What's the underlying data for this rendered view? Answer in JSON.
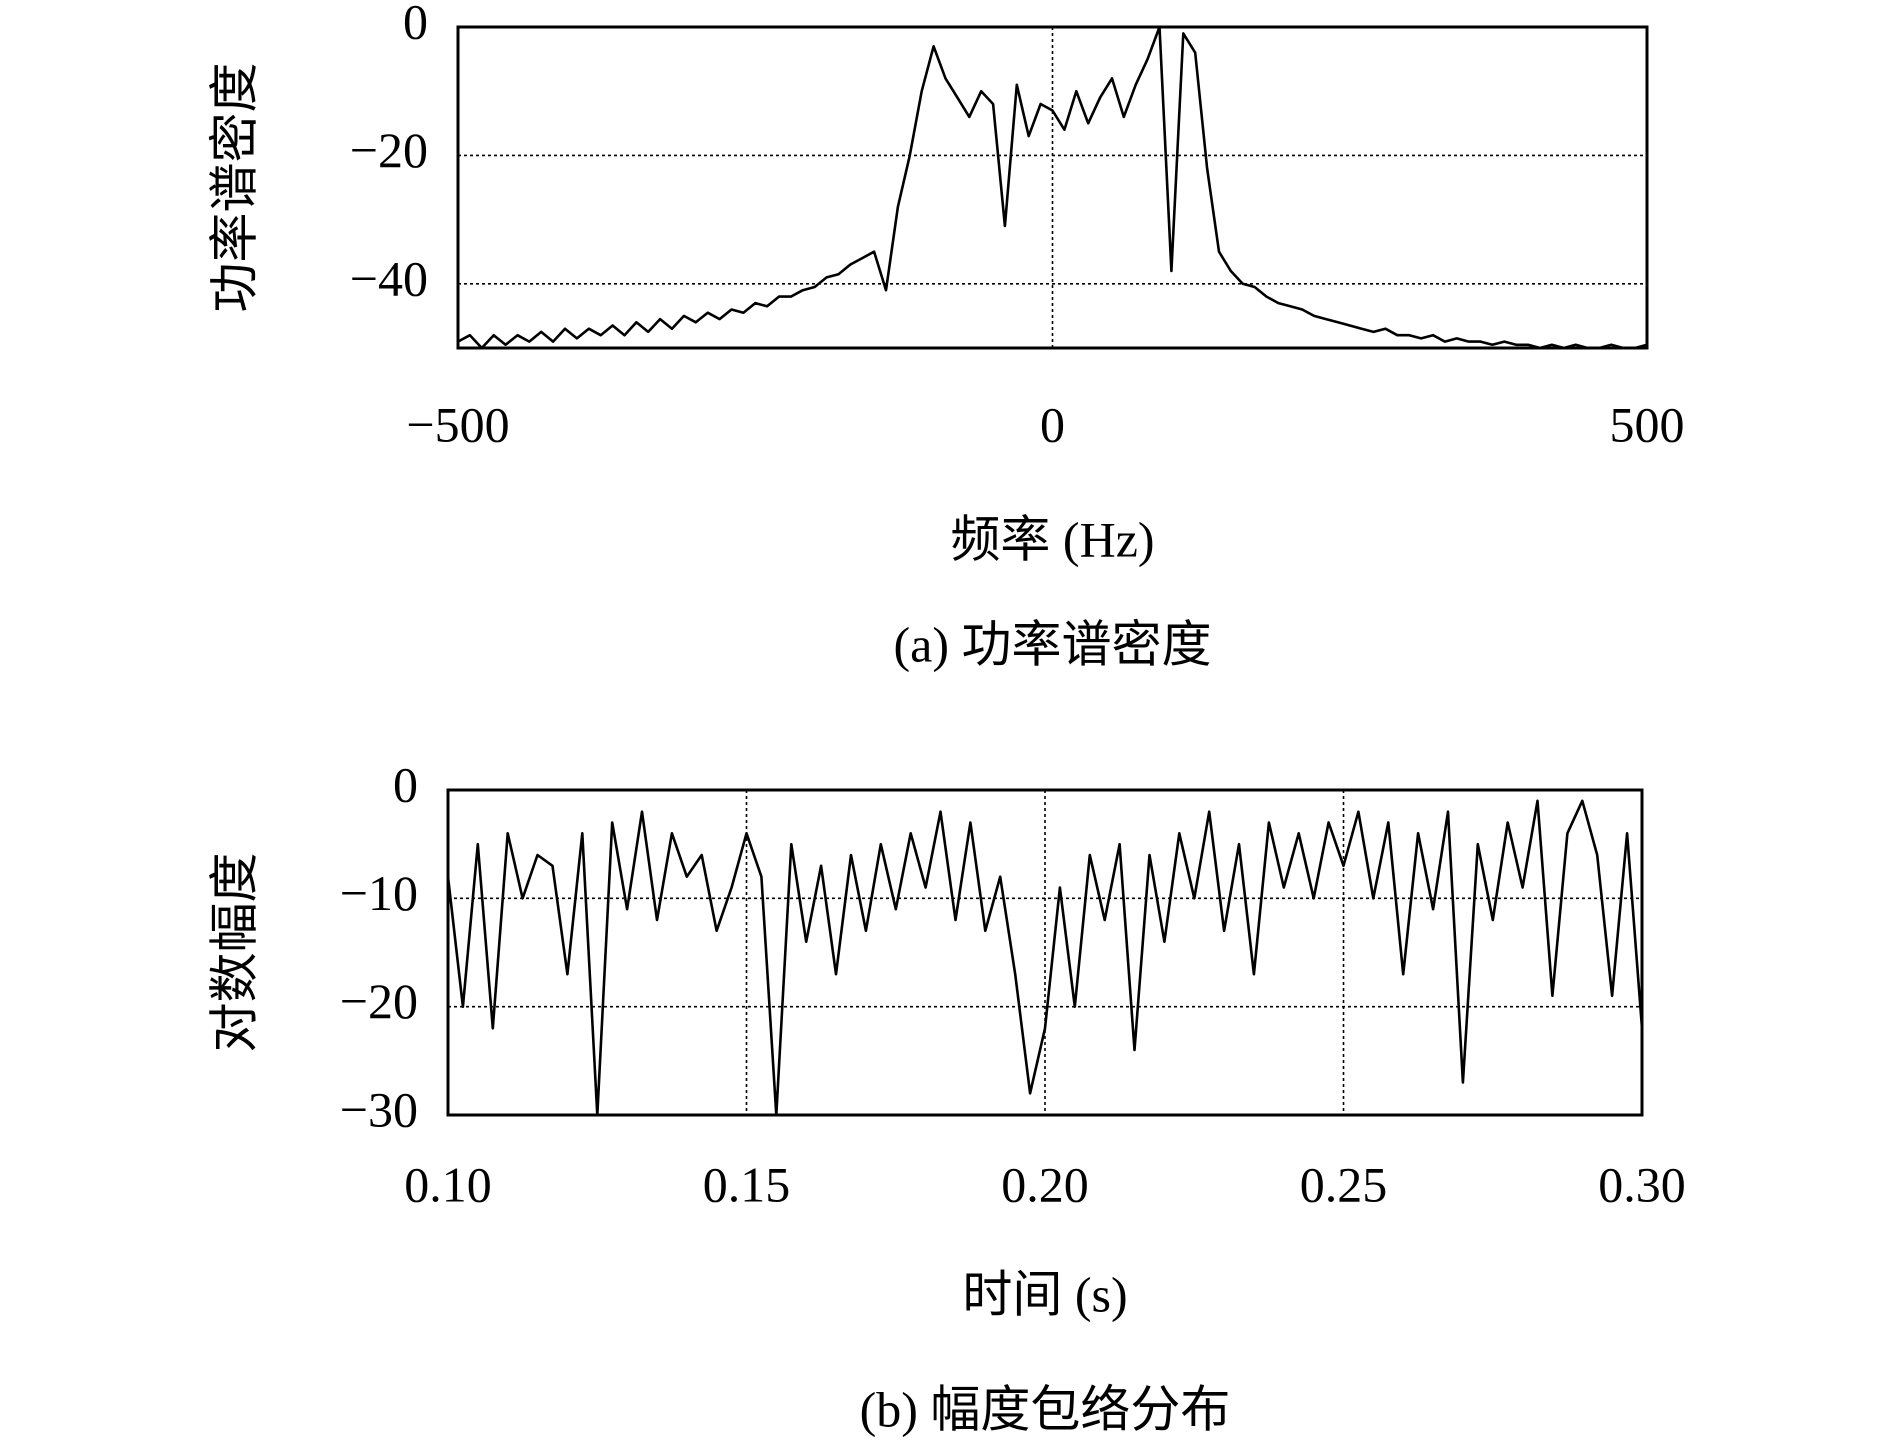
{
  "chart_data": [
    {
      "type": "line",
      "y_label": "功率谱密度",
      "x_label": "频率 (Hz)",
      "caption": "(a) 功率谱密度",
      "color": "#000000",
      "grid": true,
      "xlim": [
        -500,
        500
      ],
      "ylim": [
        -50,
        0
      ],
      "xticks": [
        {
          "value": -500,
          "label": "−500"
        },
        0,
        500
      ],
      "yticks": [
        0,
        {
          "value": -20,
          "label": "−20"
        },
        {
          "value": -40,
          "label": "−40"
        }
      ],
      "x": [
        -500,
        -490,
        -480,
        -470,
        -460,
        -450,
        -440,
        -430,
        -420,
        -410,
        -400,
        -390,
        -380,
        -370,
        -360,
        -350,
        -340,
        -330,
        -320,
        -310,
        -300,
        -290,
        -280,
        -270,
        -260,
        -250,
        -240,
        -230,
        -220,
        -210,
        -200,
        -190,
        -180,
        -170,
        -160,
        -150,
        -140,
        -130,
        -120,
        -110,
        -100,
        -90,
        -80,
        -70,
        -60,
        -50,
        -40,
        -30,
        -20,
        -10,
        0,
        10,
        20,
        30,
        40,
        50,
        60,
        70,
        80,
        90,
        100,
        110,
        120,
        130,
        140,
        150,
        160,
        170,
        180,
        190,
        200,
        210,
        220,
        230,
        240,
        250,
        260,
        270,
        280,
        290,
        300,
        310,
        320,
        330,
        340,
        350,
        360,
        370,
        380,
        390,
        400,
        410,
        420,
        430,
        440,
        450,
        460,
        470,
        480,
        490,
        500
      ],
      "values": [
        -49,
        -48,
        -50,
        -48,
        -49.5,
        -48,
        -49,
        -47.5,
        -49,
        -47,
        -48.5,
        -47,
        -48,
        -46.5,
        -48,
        -46,
        -47.5,
        -45.5,
        -47,
        -45,
        -46,
        -44.5,
        -45.5,
        -44,
        -44.5,
        -43,
        -43.5,
        -42,
        -42,
        -41,
        -40.5,
        -39,
        -38.5,
        -37,
        -36,
        -35,
        -41,
        -28,
        -20,
        -10,
        -3,
        -8,
        -11,
        -14,
        -10,
        -12,
        -31,
        -9,
        -17,
        -12,
        -13,
        -16,
        -10,
        -15,
        -11,
        -8,
        -14,
        -9,
        -5,
        0,
        -38,
        -1,
        -4,
        -22,
        -35,
        -38,
        -40,
        -40.5,
        -42,
        -43,
        -43.5,
        -44,
        -45,
        -45.5,
        -46,
        -46.5,
        -47,
        -47.5,
        -47,
        -48,
        -48,
        -48.5,
        -48,
        -49,
        -48.5,
        -49,
        -49,
        -49.5,
        -49,
        -49.5,
        -49.5,
        -50,
        -49.5,
        -50,
        -49.5,
        -50,
        -50,
        -49.5,
        -50,
        -50,
        -49.5
      ]
    },
    {
      "type": "line",
      "y_label": "对数幅度",
      "x_label": "时间 (s)",
      "caption": "(b) 幅度包络分布",
      "color": "#000000",
      "grid": true,
      "xlim": [
        0.1,
        0.3
      ],
      "ylim": [
        -30,
        0
      ],
      "xticks": [
        {
          "value": 0.1,
          "label": "0.10"
        },
        0.15,
        {
          "value": 0.2,
          "label": "0.20"
        },
        0.25,
        {
          "value": 0.3,
          "label": "0.30"
        }
      ],
      "yticks": [
        0,
        {
          "value": -10,
          "label": "−10"
        },
        {
          "value": -20,
          "label": "−20"
        },
        {
          "value": -30,
          "label": "−30"
        }
      ],
      "x": [
        0.1,
        0.1025,
        0.105,
        0.1075,
        0.11,
        0.1125,
        0.115,
        0.1175,
        0.12,
        0.1225,
        0.125,
        0.1275,
        0.13,
        0.1325,
        0.135,
        0.1375,
        0.14,
        0.1425,
        0.145,
        0.1475,
        0.15,
        0.1525,
        0.155,
        0.1575,
        0.16,
        0.1625,
        0.165,
        0.1675,
        0.17,
        0.1725,
        0.175,
        0.1775,
        0.18,
        0.1825,
        0.185,
        0.1875,
        0.19,
        0.1925,
        0.195,
        0.1975,
        0.2,
        0.2025,
        0.205,
        0.2075,
        0.21,
        0.2125,
        0.215,
        0.2175,
        0.22,
        0.2225,
        0.225,
        0.2275,
        0.23,
        0.2325,
        0.235,
        0.2375,
        0.24,
        0.2425,
        0.245,
        0.2475,
        0.25,
        0.2525,
        0.255,
        0.2575,
        0.26,
        0.2625,
        0.265,
        0.2675,
        0.27,
        0.2725,
        0.275,
        0.2775,
        0.28,
        0.2825,
        0.285,
        0.2875,
        0.29,
        0.2925,
        0.295,
        0.2975,
        0.3
      ],
      "values": [
        -8,
        -20,
        -5,
        -22,
        -4,
        -10,
        -6,
        -7,
        -17,
        -4,
        -30,
        -3,
        -11,
        -2,
        -12,
        -4,
        -8,
        -6,
        -13,
        -9,
        -4,
        -8,
        -30,
        -5,
        -14,
        -7,
        -17,
        -6,
        -13,
        -5,
        -11,
        -4,
        -9,
        -2,
        -12,
        -3,
        -13,
        -8,
        -17,
        -28,
        -22,
        -9,
        -20,
        -6,
        -12,
        -5,
        -24,
        -6,
        -14,
        -4,
        -10,
        -2,
        -13,
        -5,
        -17,
        -3,
        -9,
        -4,
        -10,
        -3,
        -7,
        -2,
        -10,
        -3,
        -17,
        -4,
        -11,
        -2,
        -27,
        -5,
        -12,
        -3,
        -9,
        -1,
        -19,
        -4,
        -1,
        -6,
        -19,
        -4,
        -22
      ]
    }
  ]
}
